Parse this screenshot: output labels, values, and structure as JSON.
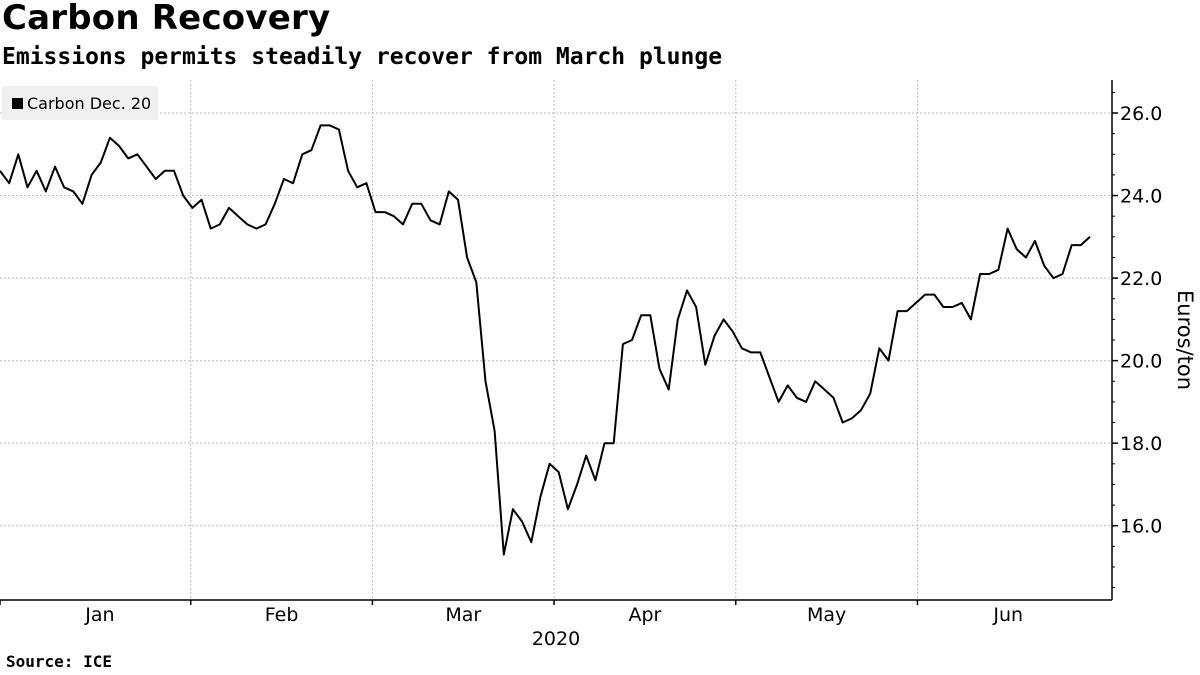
{
  "chart_data": {
    "type": "line",
    "title": "Carbon Recovery",
    "subtitle": "Emissions permits steadily recover from March plunge",
    "ylabel": "Euros/ton",
    "xlabel": "2020",
    "ylim": [
      14.2,
      26.8
    ],
    "yticks": [
      16.0,
      18.0,
      20.0,
      22.0,
      24.0,
      26.0
    ],
    "ytick_labels": [
      "16.0",
      "18.0",
      "20.0",
      "22.0",
      "24.0",
      "26.0"
    ],
    "xlim": [
      0,
      120
    ],
    "x_month_bounds": [
      0,
      21,
      41,
      61,
      81,
      101
    ],
    "x_month_labels": [
      {
        "label": "Jan",
        "x": 11
      },
      {
        "label": "Feb",
        "x": 31
      },
      {
        "label": "Mar",
        "x": 51
      },
      {
        "label": "Apr",
        "x": 71
      },
      {
        "label": "May",
        "x": 91
      },
      {
        "label": "Jun",
        "x": 111
      }
    ],
    "year_label": "2020",
    "legend_location": "top-left",
    "grid": true,
    "series": [
      {
        "name": "Carbon Dec. 20",
        "color": "#000000",
        "values": [
          24.6,
          24.3,
          25.0,
          24.2,
          24.6,
          24.1,
          24.7,
          24.2,
          24.1,
          23.8,
          24.5,
          24.8,
          25.4,
          25.2,
          24.9,
          25.0,
          24.7,
          24.4,
          24.6,
          24.6,
          24.0,
          23.7,
          23.9,
          23.2,
          23.3,
          23.7,
          23.5,
          23.3,
          23.2,
          23.3,
          23.8,
          24.4,
          24.3,
          25.0,
          25.1,
          25.7,
          25.7,
          25.6,
          24.6,
          24.2,
          24.3,
          23.6,
          23.6,
          23.5,
          23.3,
          23.8,
          23.8,
          23.4,
          23.3,
          24.1,
          23.9,
          22.5,
          21.9,
          19.5,
          18.3,
          15.3,
          16.4,
          16.1,
          15.6,
          16.7,
          17.5,
          17.3,
          16.4,
          17.0,
          17.7,
          17.1,
          18.0,
          18.0,
          20.4,
          20.5,
          21.1,
          21.1,
          19.8,
          19.3,
          21.0,
          21.7,
          21.3,
          19.9,
          20.6,
          21.0,
          20.7,
          20.3,
          20.2,
          20.2,
          19.6,
          19.0,
          19.4,
          19.1,
          19.0,
          19.5,
          19.3,
          19.1,
          18.5,
          18.6,
          18.8,
          19.2,
          20.3,
          20.0,
          21.2,
          21.2,
          21.4,
          21.6,
          21.6,
          21.3,
          21.3,
          21.4,
          21.0,
          22.1,
          22.1,
          22.2,
          23.2,
          22.7,
          22.5,
          22.9,
          22.3,
          22.0,
          22.1,
          22.8,
          22.8,
          23.0
        ]
      }
    ]
  },
  "source": "Source: ICE"
}
